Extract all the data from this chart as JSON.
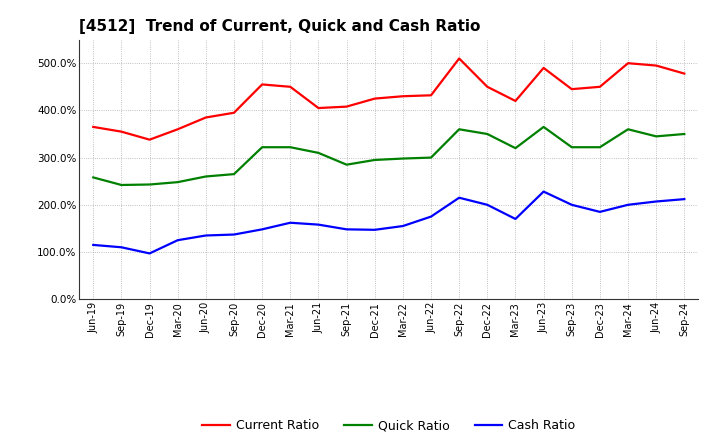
{
  "title": "[4512]  Trend of Current, Quick and Cash Ratio",
  "labels": [
    "Jun-19",
    "Sep-19",
    "Dec-19",
    "Mar-20",
    "Jun-20",
    "Sep-20",
    "Dec-20",
    "Mar-21",
    "Jun-21",
    "Sep-21",
    "Dec-21",
    "Mar-22",
    "Jun-22",
    "Sep-22",
    "Dec-22",
    "Mar-23",
    "Jun-23",
    "Sep-23",
    "Dec-23",
    "Mar-24",
    "Jun-24",
    "Sep-24"
  ],
  "current_ratio": [
    365,
    355,
    338,
    360,
    385,
    395,
    455,
    450,
    405,
    408,
    425,
    430,
    432,
    510,
    450,
    420,
    490,
    445,
    450,
    500,
    495,
    478
  ],
  "quick_ratio": [
    258,
    242,
    243,
    248,
    260,
    265,
    322,
    322,
    310,
    285,
    295,
    298,
    300,
    360,
    350,
    320,
    365,
    322,
    322,
    360,
    345,
    350
  ],
  "cash_ratio": [
    115,
    110,
    97,
    125,
    135,
    137,
    148,
    162,
    158,
    148,
    147,
    155,
    175,
    215,
    200,
    170,
    228,
    200,
    185,
    200,
    207,
    212
  ],
  "current_color": "#FF0000",
  "quick_color": "#008000",
  "cash_color": "#0000FF",
  "ylim": [
    0,
    550
  ],
  "yticks": [
    0,
    100,
    200,
    300,
    400,
    500
  ],
  "background_color": "#ffffff",
  "grid_color": "#999999",
  "title_fontsize": 11,
  "tick_fontsize": 7,
  "legend_fontsize": 9,
  "linewidth": 1.6
}
